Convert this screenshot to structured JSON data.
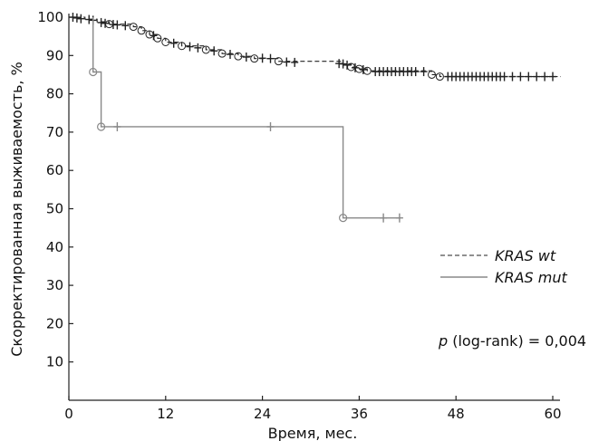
{
  "chart_data": {
    "type": "line",
    "xlabel": "Время, мес.",
    "ylabel": "Скорректированная выживаемость, %",
    "xlim": [
      0,
      60
    ],
    "ylim": [
      0,
      100
    ],
    "xticks": [
      "0",
      "12",
      "24",
      "36",
      "48",
      "60"
    ],
    "yticks": [
      "10",
      "20",
      "30",
      "40",
      "50",
      "60",
      "70",
      "80",
      "90",
      "100"
    ],
    "legend": {
      "placement": "right",
      "items": [
        {
          "style": "dashed",
          "prefix": "",
          "label": "KRAS wt"
        },
        {
          "style": "solid",
          "prefix": "",
          "label": "KRAS mut"
        }
      ]
    },
    "annotation": {
      "p": "p",
      "rest": " (log-rank) = 0,004"
    },
    "series": [
      {
        "name": "KRAS wt",
        "color": "#222222",
        "steps": [
          [
            0,
            100
          ],
          [
            2,
            99.5
          ],
          [
            3.5,
            98.8
          ],
          [
            5,
            98.2
          ],
          [
            8,
            97.5
          ],
          [
            9,
            96.5
          ],
          [
            10,
            95.5
          ],
          [
            11,
            94.5
          ],
          [
            12,
            93.5
          ],
          [
            14,
            92.5
          ],
          [
            17,
            91.5
          ],
          [
            19,
            90.5
          ],
          [
            21,
            89.8
          ],
          [
            23,
            89.2
          ],
          [
            26,
            88.5
          ],
          [
            34,
            87.8
          ],
          [
            35,
            87
          ],
          [
            36,
            86.5
          ],
          [
            37,
            86
          ],
          [
            45,
            85
          ],
          [
            46,
            84.5
          ],
          [
            61,
            84.5
          ]
        ],
        "events": [
          [
            5,
            98.2
          ],
          [
            8,
            97.5
          ],
          [
            9,
            96.5
          ],
          [
            10,
            95.5
          ],
          [
            11,
            94.5
          ],
          [
            12,
            93.5
          ],
          [
            14,
            92.5
          ],
          [
            17,
            91.5
          ],
          [
            19,
            90.5
          ],
          [
            21,
            89.8
          ],
          [
            23,
            89.2
          ],
          [
            26,
            88.5
          ],
          [
            35,
            87
          ],
          [
            36,
            86.5
          ],
          [
            37,
            86
          ],
          [
            45,
            85
          ],
          [
            46,
            84.5
          ]
        ],
        "censored": [
          [
            0.5,
            100
          ],
          [
            1,
            99.8
          ],
          [
            1.5,
            99.6
          ],
          [
            2.5,
            99.4
          ],
          [
            3,
            99.2
          ],
          [
            4,
            98.6
          ],
          [
            4.5,
            98.4
          ],
          [
            5.5,
            98.1
          ],
          [
            6,
            98
          ],
          [
            7,
            97.8
          ],
          [
            10.5,
            95.2
          ],
          [
            13,
            93.2
          ],
          [
            15,
            92.3
          ],
          [
            16,
            92
          ],
          [
            18,
            91.2
          ],
          [
            20,
            90.3
          ],
          [
            22,
            89.6
          ],
          [
            24,
            89.3
          ],
          [
            25,
            89.2
          ],
          [
            27,
            88.3
          ],
          [
            28,
            88.2
          ],
          [
            33.5,
            87.9
          ],
          [
            34,
            87.8
          ],
          [
            34.5,
            87.5
          ],
          [
            35.5,
            86.8
          ],
          [
            36.5,
            86.3
          ],
          [
            38,
            85.8
          ],
          [
            38.5,
            85.8
          ],
          [
            39,
            85.8
          ],
          [
            39.5,
            85.8
          ],
          [
            40,
            85.8
          ],
          [
            40.5,
            85.8
          ],
          [
            41,
            85.8
          ],
          [
            41.5,
            85.8
          ],
          [
            42,
            85.8
          ],
          [
            42.5,
            85.8
          ],
          [
            43,
            85.8
          ],
          [
            44,
            85.8
          ],
          [
            47,
            84.5
          ],
          [
            47.5,
            84.5
          ],
          [
            48,
            84.5
          ],
          [
            48.5,
            84.5
          ],
          [
            49,
            84.5
          ],
          [
            49.5,
            84.5
          ],
          [
            50,
            84.5
          ],
          [
            50.5,
            84.5
          ],
          [
            51,
            84.5
          ],
          [
            51.5,
            84.5
          ],
          [
            52,
            84.5
          ],
          [
            52.5,
            84.5
          ],
          [
            53,
            84.5
          ],
          [
            53.5,
            84.5
          ],
          [
            54,
            84.5
          ],
          [
            55,
            84.5
          ],
          [
            56,
            84.5
          ],
          [
            57,
            84.5
          ],
          [
            58,
            84.5
          ],
          [
            59,
            84.5
          ],
          [
            60,
            84.5
          ]
        ]
      },
      {
        "name": "KRAS mut",
        "color": "#888888",
        "steps": [
          [
            3,
            100
          ],
          [
            3,
            85.7
          ],
          [
            4,
            85.7
          ],
          [
            4,
            71.4
          ],
          [
            34,
            71.4
          ],
          [
            34,
            47.6
          ],
          [
            41,
            47.6
          ]
        ],
        "events": [
          [
            3,
            85.7
          ],
          [
            4,
            71.4
          ],
          [
            34,
            47.6
          ]
        ],
        "censored": [
          [
            6,
            71.4
          ],
          [
            25,
            71.4
          ],
          [
            39,
            47.6
          ],
          [
            41,
            47.6
          ]
        ]
      }
    ]
  }
}
